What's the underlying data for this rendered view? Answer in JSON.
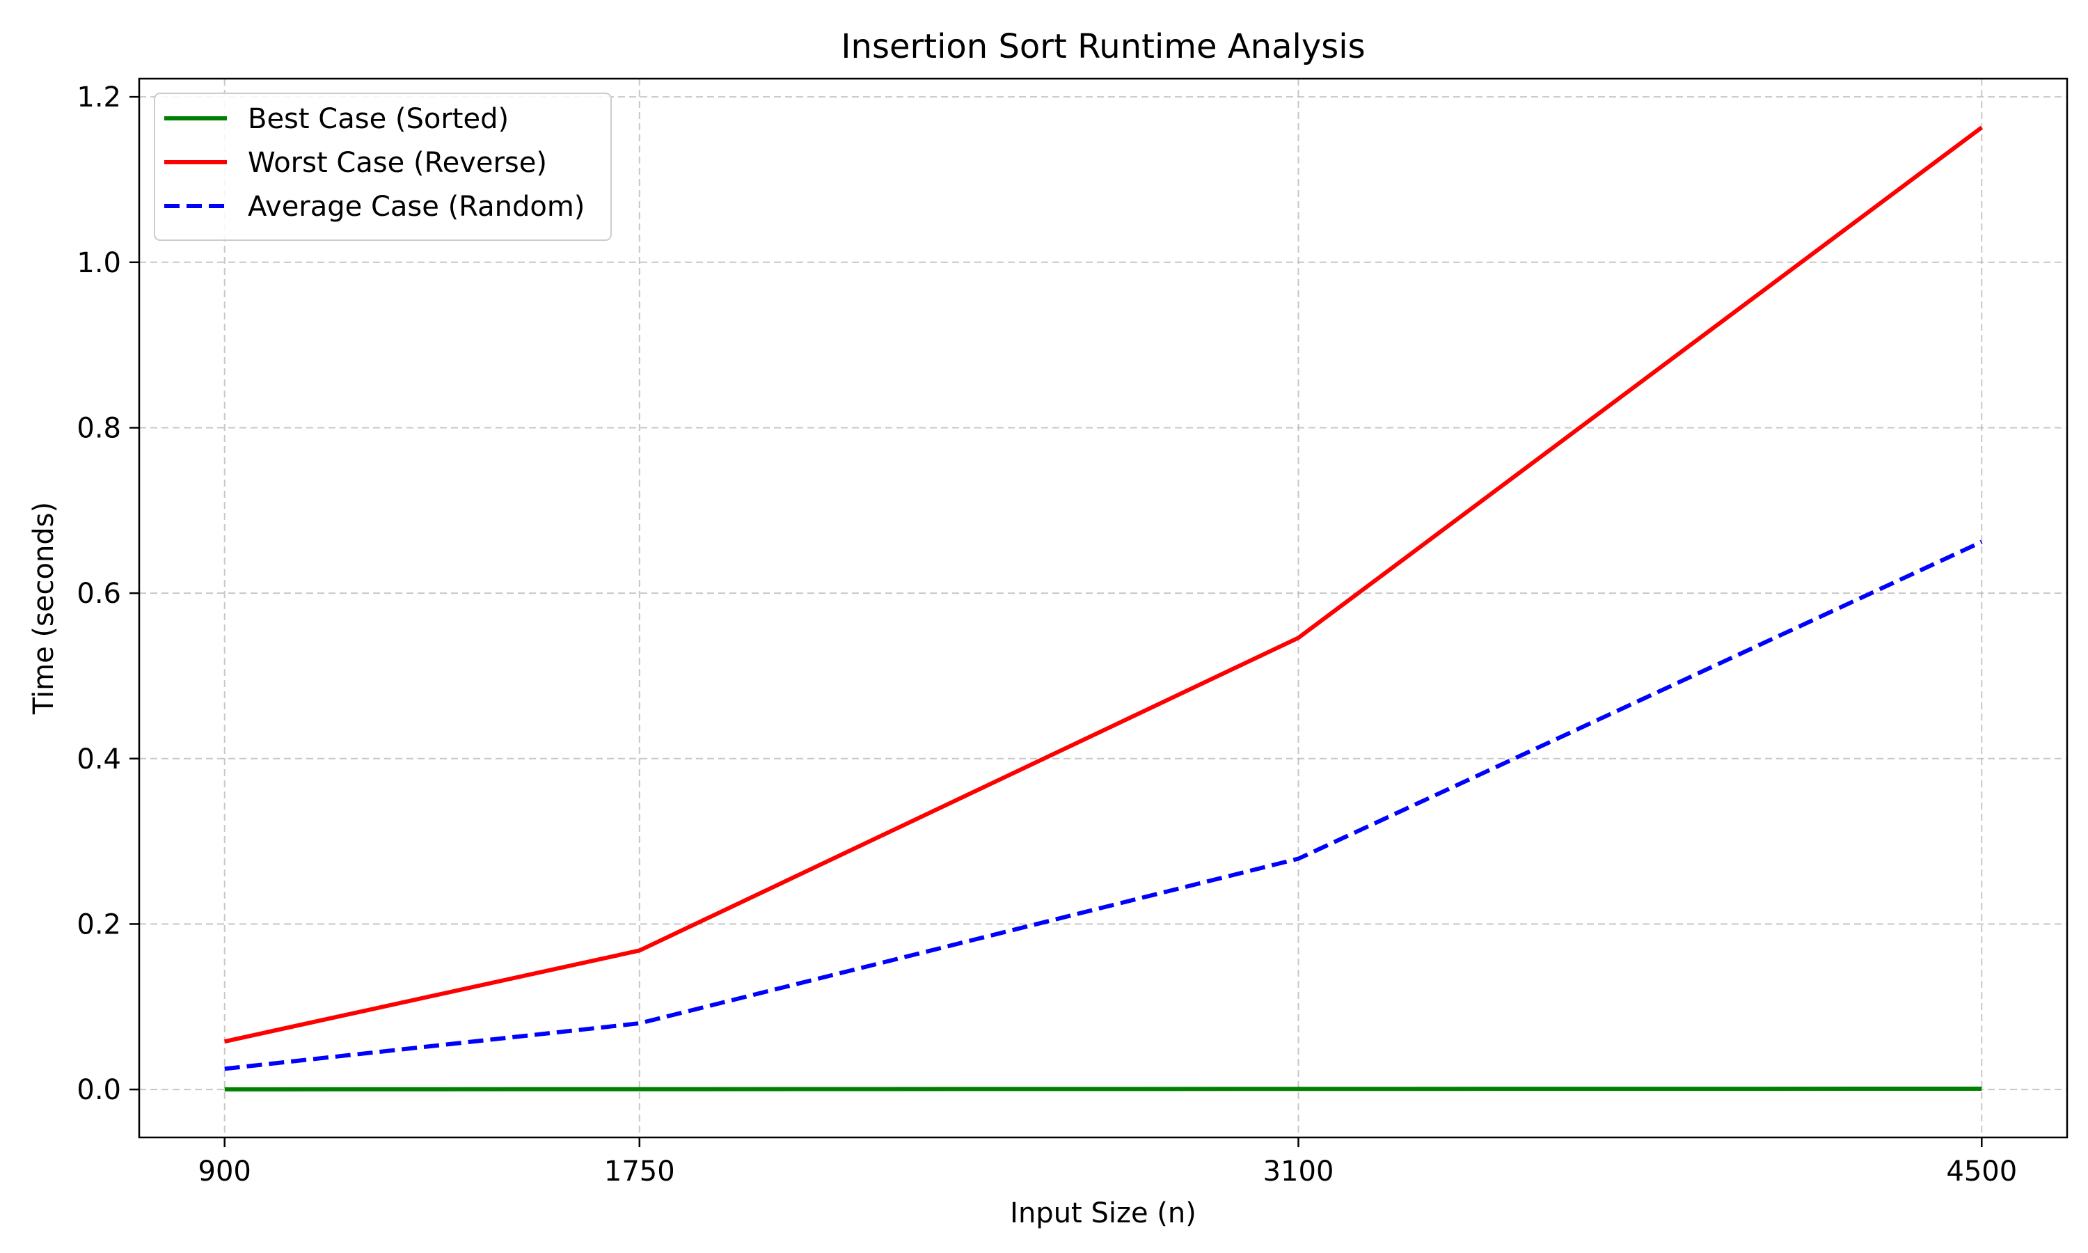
{
  "chart_data": {
    "type": "line",
    "title": "Insertion Sort Runtime Analysis",
    "xlabel": "Input Size (n)",
    "ylabel": "Time (seconds)",
    "x": [
      900,
      1750,
      3100,
      4500
    ],
    "x_tick_labels": [
      "900",
      "1750",
      "3100",
      "4500"
    ],
    "xlim": [
      725,
      4675
    ],
    "ylim": [
      -0.058,
      1.222
    ],
    "y_ticks": [
      0.0,
      0.2,
      0.4,
      0.6,
      0.8,
      1.0,
      1.2
    ],
    "y_tick_labels": [
      "0.0",
      "0.2",
      "0.4",
      "0.6",
      "0.8",
      "1.0",
      "1.2"
    ],
    "grid": true,
    "legend_position": "top-left",
    "series": [
      {
        "name": "Best Case (Sorted)",
        "values": [
          0.0002,
          0.0004,
          0.0007,
          0.0009
        ],
        "color": "#008000",
        "line_style": "solid"
      },
      {
        "name": "Worst Case (Reverse)",
        "values": [
          0.058,
          0.168,
          0.546,
          1.163
        ],
        "color": "#ff0000",
        "line_style": "solid"
      },
      {
        "name": "Average Case (Random)",
        "values": [
          0.025,
          0.08,
          0.279,
          0.662
        ],
        "color": "#0000ff",
        "line_style": "dashed"
      }
    ]
  }
}
